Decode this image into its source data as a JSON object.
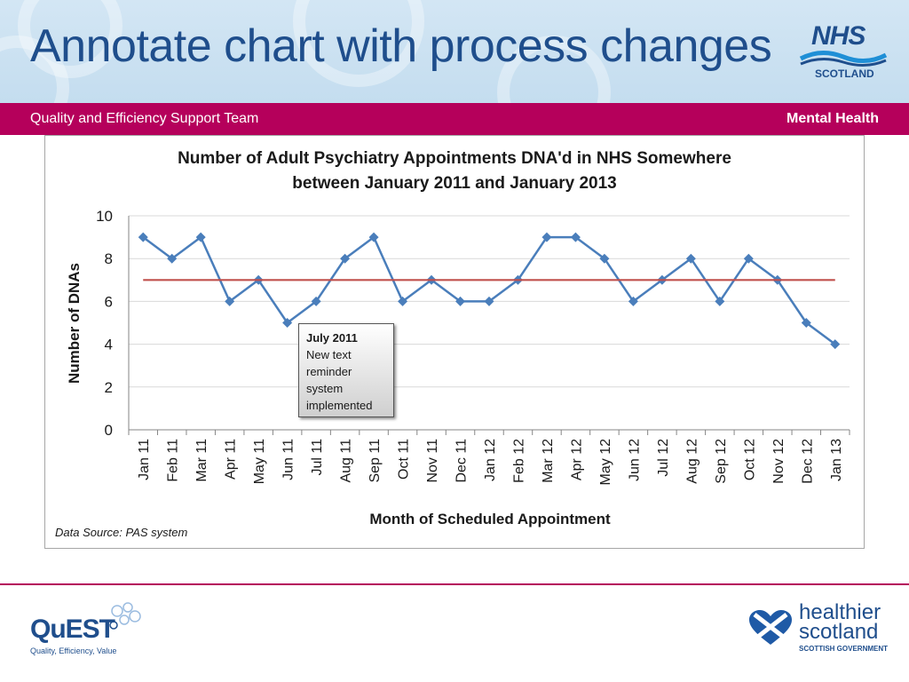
{
  "slide": {
    "title": "Annotate chart with process changes",
    "band_left": "Quality and Efficiency Support Team",
    "band_right": "Mental Health",
    "data_source": "Data Source: PAS system"
  },
  "logos": {
    "nhs_text": "NHS",
    "nhs_scotland": "SCOTLAND",
    "quest_text": "QuEST",
    "quest_sub": "Quality, Efficiency, Value",
    "hs_line1": "healthier",
    "hs_line2": "scotland",
    "hs_line3": "SCOTTISH GOVERNMENT"
  },
  "annotation": {
    "title": "July 2011",
    "lines": [
      "New text",
      "reminder",
      "system",
      "implemented"
    ]
  },
  "colors": {
    "title_blue": "#1f4e8c",
    "band_magenta": "#b5005b",
    "series_blue": "#4a7ebb",
    "median_red": "#c0504d"
  },
  "chart_data": {
    "type": "line",
    "title_line1": "Number of Adult Psychiatry Appointments DNA'd in NHS Somewhere",
    "title_line2": "between January 2011 and January 2013",
    "xlabel": "Month of Scheduled Appointment",
    "ylabel": "Number of DNAs",
    "ylim": [
      0,
      10
    ],
    "yticks": [
      0,
      2,
      4,
      6,
      8,
      10
    ],
    "grid": true,
    "categories": [
      "Jan 11",
      "Feb 11",
      "Mar 11",
      "Apr 11",
      "May 11",
      "Jun 11",
      "Jul 11",
      "Aug 11",
      "Sep 11",
      "Oct 11",
      "Nov 11",
      "Dec 11",
      "Jan 12",
      "Feb 12",
      "Mar 12",
      "Apr 12",
      "May 12",
      "Jun 12",
      "Jul 12",
      "Aug 12",
      "Sep 12",
      "Oct 12",
      "Nov 12",
      "Dec 12",
      "Jan 13"
    ],
    "series": [
      {
        "values": [
          9,
          8,
          9,
          6,
          7,
          5,
          6,
          8,
          9,
          6,
          7,
          6,
          6,
          7,
          9,
          9,
          8,
          6,
          7,
          8,
          6,
          8,
          7,
          5,
          4
        ],
        "color": "#4a7ebb",
        "marker": "diamond"
      },
      {
        "values": [
          7,
          7,
          7,
          7,
          7,
          7,
          7,
          7,
          7,
          7,
          7,
          7,
          7,
          7,
          7,
          7,
          7,
          7,
          7,
          7,
          7,
          7,
          7,
          7,
          7
        ],
        "color": "#c0504d",
        "marker": "none"
      }
    ]
  }
}
